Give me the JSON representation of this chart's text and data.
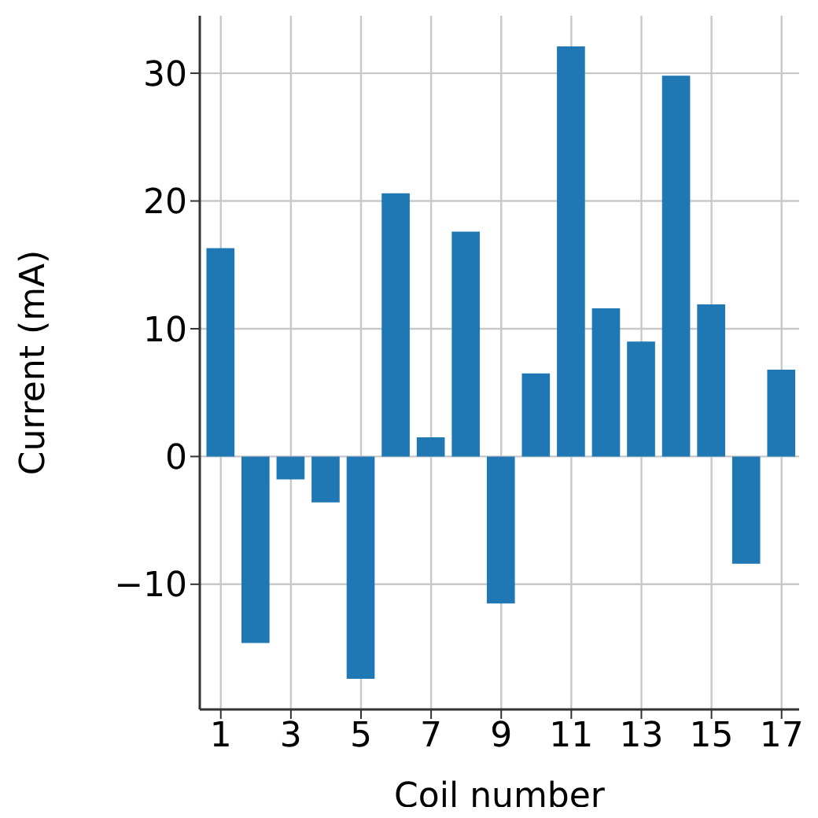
{
  "chart_data": {
    "type": "bar",
    "xlabel": "Coil number",
    "ylabel": "Current (mA)",
    "x": [
      1,
      2,
      3,
      4,
      5,
      6,
      7,
      8,
      9,
      10,
      11,
      12,
      13,
      14,
      15,
      16,
      17
    ],
    "values": [
      16.3,
      -14.6,
      -1.8,
      -3.6,
      -17.4,
      20.6,
      1.5,
      17.6,
      -11.5,
      6.5,
      32.1,
      11.6,
      9.0,
      29.8,
      11.9,
      -8.4,
      6.8
    ],
    "color": "#1f77b4",
    "xlim": [
      0.4,
      17.5
    ],
    "xticks": [
      1,
      3,
      5,
      7,
      9,
      11,
      13,
      15,
      17
    ],
    "ylim": [
      -19.8,
      34.5
    ],
    "yticks": [
      -10,
      0,
      10,
      20,
      30
    ],
    "grid": true
  }
}
